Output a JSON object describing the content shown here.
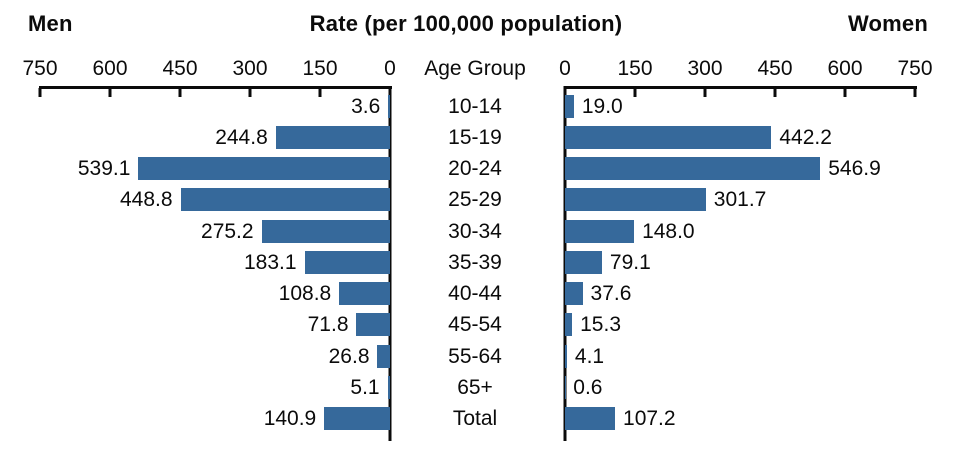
{
  "header": {
    "left": "Men",
    "title": "Rate (per 100,000 population)",
    "right": "Women"
  },
  "chart_data": {
    "type": "bar",
    "orientation": "bidirectional-horizontal",
    "title": "Rate (per 100,000 population)",
    "center_label": "Age Group",
    "categories": [
      "10-14",
      "15-19",
      "20-24",
      "25-29",
      "30-34",
      "35-39",
      "40-44",
      "45-54",
      "55-64",
      "65+",
      "Total"
    ],
    "series": [
      {
        "name": "Men",
        "side": "left",
        "values": [
          3.6,
          244.8,
          539.1,
          448.8,
          275.2,
          183.1,
          108.8,
          71.8,
          26.8,
          5.1,
          140.9
        ]
      },
      {
        "name": "Women",
        "side": "right",
        "values": [
          19.0,
          442.2,
          546.9,
          301.7,
          148.0,
          79.1,
          37.6,
          15.3,
          4.1,
          0.6,
          107.2
        ]
      }
    ],
    "axis": {
      "min": 0,
      "max": 750,
      "ticks": [
        0,
        150,
        300,
        450,
        600,
        750
      ]
    },
    "value_label_decimals": 1,
    "bar_color": "#36699B",
    "axis_color": "#0b0b0b",
    "grid": false,
    "legend_position": "none"
  }
}
